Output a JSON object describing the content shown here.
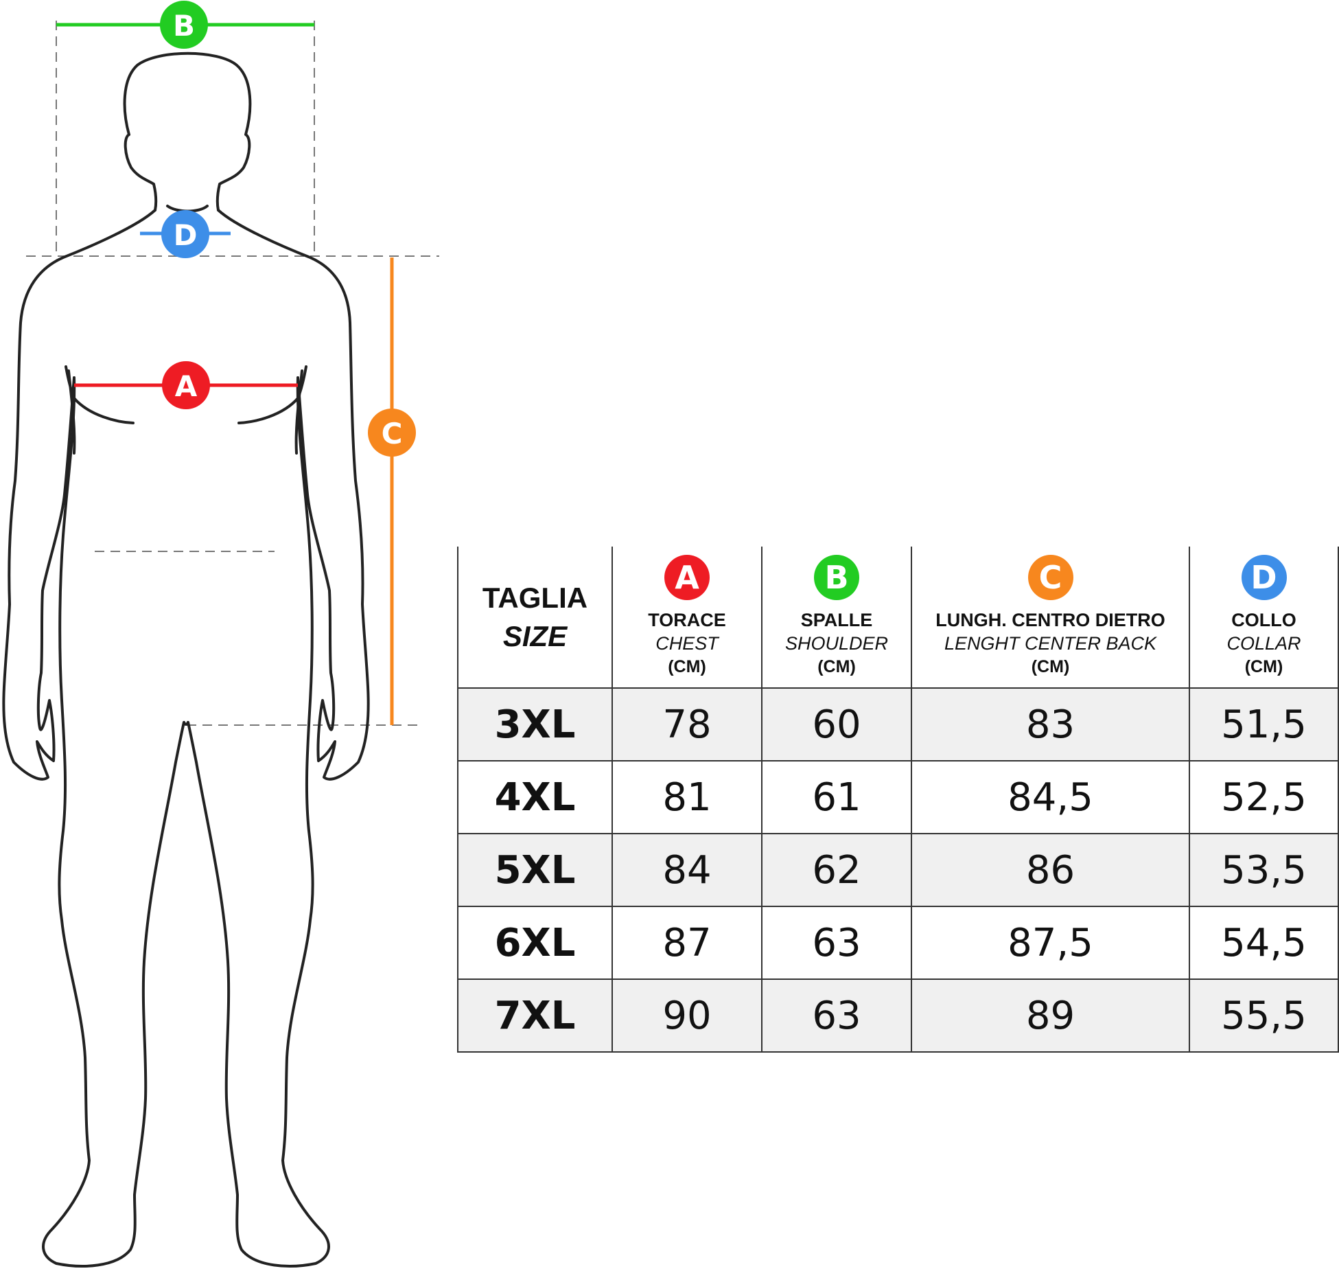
{
  "colors": {
    "A": "#ee1c24",
    "B": "#22cc22",
    "C": "#f7871e",
    "D": "#3d8ee8",
    "outline": "#222222",
    "dash": "#777777",
    "row_shade": "#f0f0f0"
  },
  "figure": {
    "markers": {
      "A": "A",
      "B": "B",
      "C": "C",
      "D": "D"
    }
  },
  "table": {
    "size_header": {
      "it": "TAGLIA",
      "en": "SIZE"
    },
    "columns": [
      {
        "letter": "A",
        "it": "TORACE",
        "en": "CHEST",
        "unit": "(CM)",
        "color_key": "A"
      },
      {
        "letter": "B",
        "it": "SPALLE",
        "en": "SHOULDER",
        "unit": "(CM)",
        "color_key": "B"
      },
      {
        "letter": "C",
        "it": "LUNGH. CENTRO DIETRO",
        "en": "LENGHT CENTER BACK",
        "unit": "(CM)",
        "color_key": "C"
      },
      {
        "letter": "D",
        "it": "COLLO",
        "en": "COLLAR",
        "unit": "(CM)",
        "color_key": "D"
      }
    ],
    "rows": [
      {
        "size": "3XL",
        "values": [
          "78",
          "60",
          "83",
          "51,5"
        ]
      },
      {
        "size": "4XL",
        "values": [
          "81",
          "61",
          "84,5",
          "52,5"
        ]
      },
      {
        "size": "5XL",
        "values": [
          "84",
          "62",
          "86",
          "53,5"
        ]
      },
      {
        "size": "6XL",
        "values": [
          "87",
          "63",
          "87,5",
          "54,5"
        ]
      },
      {
        "size": "7XL",
        "values": [
          "90",
          "63",
          "89",
          "55,5"
        ]
      }
    ]
  }
}
